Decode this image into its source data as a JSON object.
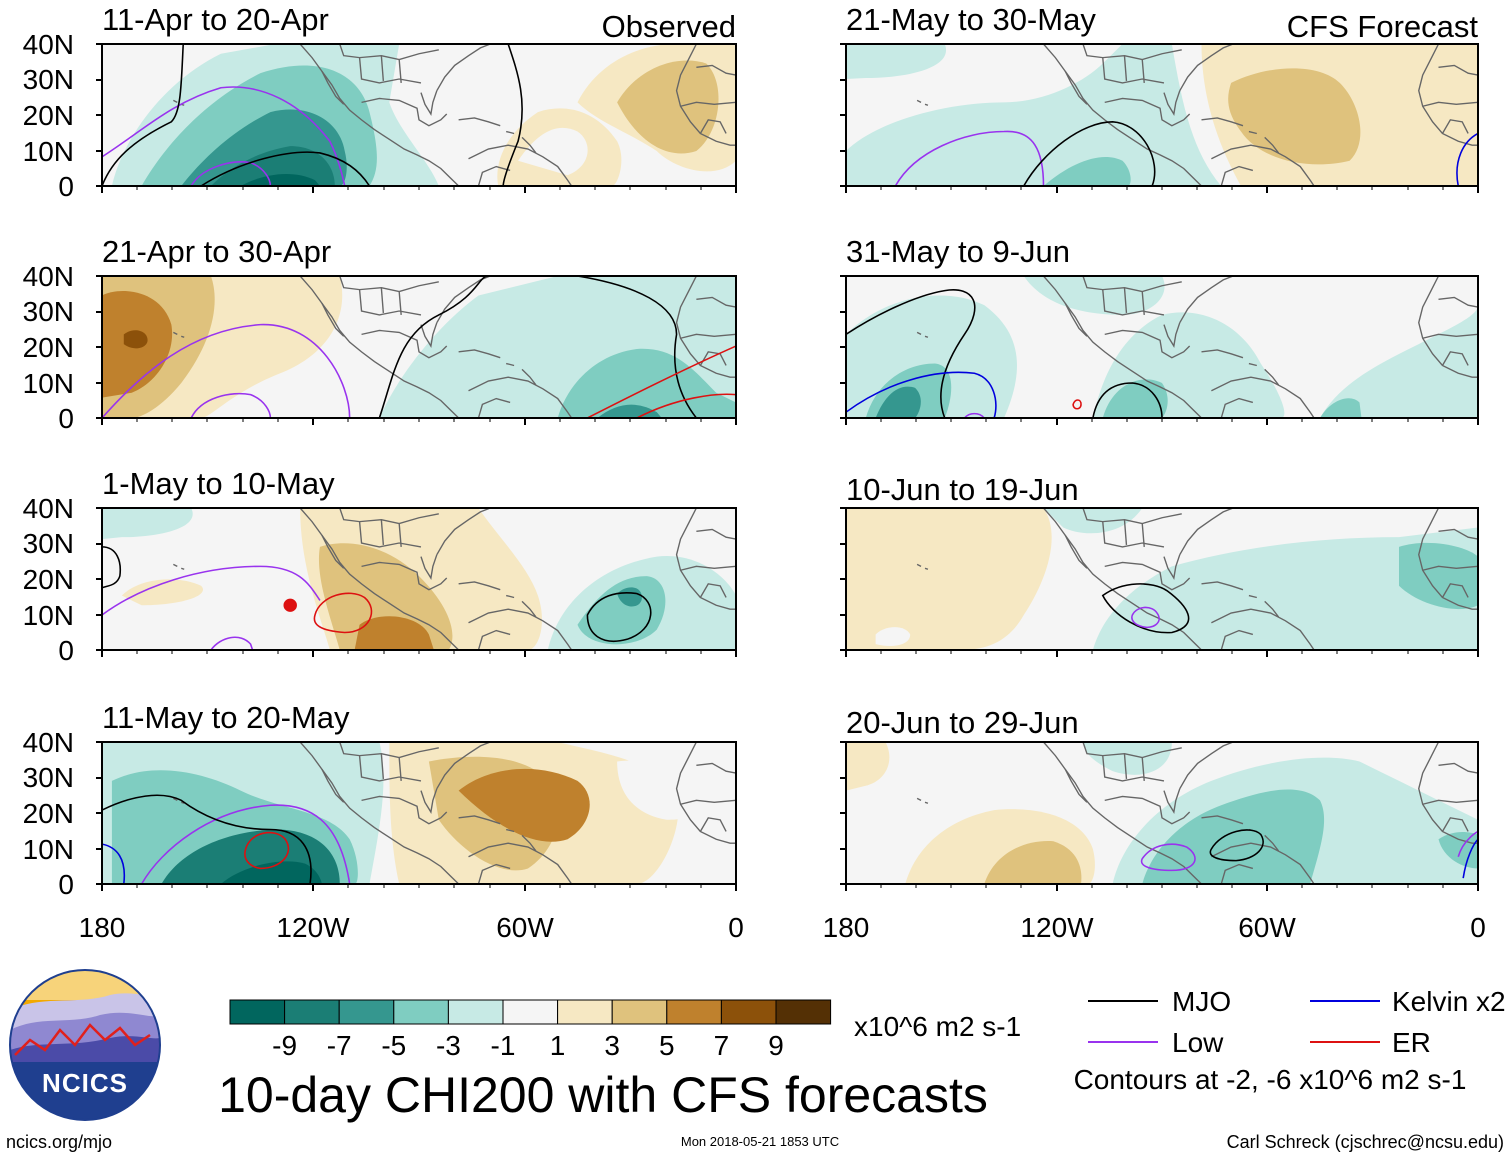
{
  "title": "10-day CHI200 with CFS forecasts",
  "site": "ncics.org/mjo",
  "timestamp": "Mon 2018-05-21 1853 UTC",
  "author": "Carl Schreck (cjschrec@ncsu.edu)",
  "logo_text": "NCICS",
  "columns": [
    {
      "label": "Observed",
      "panels": [
        "11-Apr to 20-Apr",
        "21-Apr to 30-Apr",
        "1-May to 10-May",
        "11-May to 20-May"
      ]
    },
    {
      "label": "CFS Forecast",
      "panels": [
        "21-May to 30-May",
        "31-May to 9-Jun",
        "10-Jun to 19-Jun",
        "20-Jun to 29-Jun"
      ]
    }
  ],
  "lat_labels": [
    "40N",
    "30N",
    "20N",
    "10N",
    "0"
  ],
  "lon_labels": [
    "180",
    "120W",
    "60W",
    "0"
  ],
  "colorbar": {
    "colors": [
      "#01665e",
      "#1b7e75",
      "#35978f",
      "#7fcdc1",
      "#c7eae5",
      "#f5f5f5",
      "#f6e8c3",
      "#dfc27d",
      "#bf812d",
      "#8c510a",
      "#543005"
    ],
    "labels": [
      "-9",
      "-7",
      "-5",
      "-3",
      "-1",
      "1",
      "3",
      "5",
      "7",
      "9"
    ],
    "units": "x10^6 m2 s-1"
  },
  "legend": {
    "items": [
      {
        "label": "MJO",
        "color": "#000000"
      },
      {
        "label": "Kelvin x2",
        "color": "#0000dd"
      },
      {
        "label": "Low",
        "color": "#9933ee"
      },
      {
        "label": "ER",
        "color": "#dd1111"
      }
    ],
    "note": "Contours at -2, -6 x10^6 m2 s-1"
  },
  "colors": {
    "map_land_lines": "#666666",
    "panel_border": "#000000",
    "logo_sky": "#f2a900",
    "logo_band": "#1f3f8f"
  }
}
